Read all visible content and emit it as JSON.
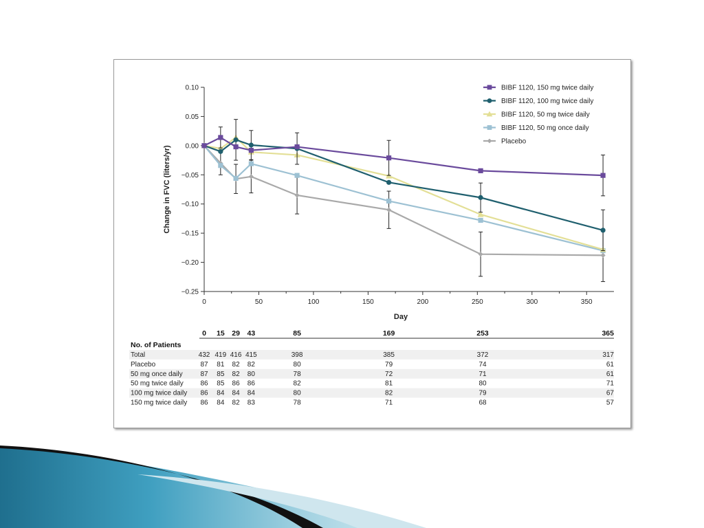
{
  "colors": {
    "bibf150": "#6a4a9c",
    "bibf100": "#1f5f6e",
    "bibf50_twice": "#e3df96",
    "bibf50_once": "#9dc1d3",
    "placebo": "#a9a9a9",
    "errorbar": "#222222",
    "row_shade": "#f0f0f0"
  },
  "chart_data": {
    "type": "line",
    "xlabel": "Day",
    "ylabel": "Change in FVC (liters/yr)",
    "xlim": [
      0,
      365
    ],
    "ylim": [
      -0.25,
      0.1
    ],
    "x_ticks": [
      0,
      50,
      100,
      150,
      200,
      250,
      300,
      350
    ],
    "y_ticks": [
      0.1,
      0.05,
      0.0,
      -0.05,
      -0.1,
      -0.15,
      -0.2,
      -0.25
    ],
    "y_tick_labels": [
      "0.10",
      "0.05",
      "0.00",
      "−0.05",
      "−0.10",
      "−0.15",
      "−0.20",
      "−0.25"
    ],
    "x": [
      0,
      15,
      29,
      43,
      85,
      169,
      253,
      365
    ],
    "legend_position": "top-right",
    "series": [
      {
        "name": "BIBF 1120, 150 mg twice daily",
        "color_key": "bibf150",
        "marker": "square",
        "values": [
          0.0,
          0.014,
          -0.002,
          -0.008,
          -0.002,
          -0.021,
          -0.043,
          -0.051
        ],
        "err": [
          0,
          0.018,
          0,
          0,
          0,
          0.03,
          0,
          0.035
        ]
      },
      {
        "name": "BIBF 1120, 100 mg twice daily",
        "color_key": "bibf100",
        "marker": "circle",
        "values": [
          0.0,
          -0.01,
          0.01,
          0.001,
          -0.005,
          -0.063,
          -0.089,
          -0.145
        ],
        "err": [
          0,
          0,
          0.035,
          0.025,
          0.027,
          0,
          0.025,
          0.035
        ]
      },
      {
        "name": "BIBF 1120, 50 mg twice daily",
        "color_key": "bibf50_twice",
        "marker": "triangle",
        "values": [
          0.0,
          -0.005,
          0.014,
          -0.011,
          -0.016,
          -0.052,
          -0.118,
          -0.178
        ],
        "err": [
          0,
          0,
          0,
          0,
          0,
          0,
          0,
          0
        ]
      },
      {
        "name": "BIBF 1120, 50 mg once daily",
        "color_key": "bibf50_once",
        "marker": "square",
        "values": [
          0.0,
          -0.034,
          -0.056,
          -0.031,
          -0.051,
          -0.095,
          -0.128,
          -0.18
        ],
        "err": [
          0,
          0,
          0,
          0,
          0,
          0,
          0,
          0
        ]
      },
      {
        "name": "Placebo",
        "color_key": "placebo",
        "marker": "diamond",
        "values": [
          0.0,
          -0.03,
          -0.057,
          -0.053,
          -0.085,
          -0.11,
          -0.186,
          -0.188
        ],
        "err": [
          0,
          0.02,
          0.025,
          0.028,
          0.032,
          0.032,
          0.038,
          0.045
        ]
      }
    ]
  },
  "patients_table": {
    "days": [
      "0",
      "15",
      "29",
      "43",
      "85",
      "169",
      "253",
      "365"
    ],
    "title": "No. of Patients",
    "rows": [
      {
        "label": "Total",
        "values": [
          "432",
          "419",
          "416",
          "415",
          "398",
          "385",
          "372",
          "317"
        ]
      },
      {
        "label": "Placebo",
        "values": [
          "87",
          "81",
          "82",
          "82",
          "80",
          "79",
          "74",
          "61"
        ]
      },
      {
        "label": "50 mg once daily",
        "values": [
          "87",
          "85",
          "82",
          "80",
          "78",
          "72",
          "71",
          "61"
        ]
      },
      {
        "label": "50 mg twice daily",
        "values": [
          "86",
          "85",
          "86",
          "86",
          "82",
          "81",
          "80",
          "71"
        ]
      },
      {
        "label": "100 mg twice daily",
        "values": [
          "86",
          "84",
          "84",
          "84",
          "80",
          "82",
          "79",
          "67"
        ]
      },
      {
        "label": "150 mg twice daily",
        "values": [
          "86",
          "84",
          "82",
          "83",
          "78",
          "71",
          "68",
          "57"
        ]
      }
    ]
  }
}
